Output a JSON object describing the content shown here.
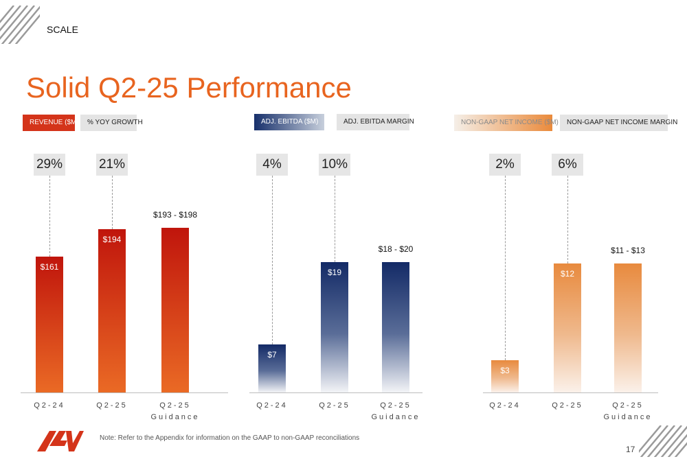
{
  "header": {
    "section": "SCALE",
    "title": "Solid Q2-25 Performance"
  },
  "legends": [
    {
      "label": "REVENUE ($M)"
    },
    {
      "label": "% YOY GROWTH"
    },
    {
      "label": "ADJ. EBITDA ($M)"
    },
    {
      "label": "ADJ. EBITDA MARGIN"
    },
    {
      "label": "NON-GAAP NET INCOME ($M)"
    },
    {
      "label": "NON-GAAP NET INCOME MARGIN"
    }
  ],
  "chart_data": [
    {
      "type": "bar",
      "categories": [
        "Q2-24",
        "Q2-25",
        "Q2-25 Guidance"
      ],
      "series": [
        {
          "name": "REVENUE ($M)",
          "values": [
            161,
            194,
            195.5
          ],
          "labels": [
            "$161",
            "$194",
            "$193 - $198"
          ]
        }
      ],
      "growth": [
        "29%",
        "21%"
      ],
      "xlabels": [
        [
          "Q2-24"
        ],
        [
          "Q2-25"
        ],
        [
          "Q2-25",
          "Guidance"
        ]
      ],
      "ylim": [
        0,
        220
      ],
      "color": "#d4341a"
    },
    {
      "type": "bar",
      "categories": [
        "Q2-24",
        "Q2-25",
        "Q2-25 Guidance"
      ],
      "series": [
        {
          "name": "ADJ. EBITDA ($M)",
          "values": [
            7,
            19,
            19
          ],
          "labels": [
            "$7",
            "$19",
            "$18 - $20"
          ]
        }
      ],
      "growth": [
        "4%",
        "10%"
      ],
      "xlabels": [
        [
          "Q2-24"
        ],
        [
          "Q2-25"
        ],
        [
          "Q2-25",
          "Guidance"
        ]
      ],
      "ylim": [
        0,
        27
      ],
      "color": "#17306b"
    },
    {
      "type": "bar",
      "categories": [
        "Q2-24",
        "Q2-25",
        "Q2-25 Guidance"
      ],
      "series": [
        {
          "name": "NON-GAAP NET INCOME ($M)",
          "values": [
            3,
            12,
            12
          ],
          "labels": [
            "$3",
            "$12",
            "$11 - $13"
          ]
        }
      ],
      "growth": [
        "2%",
        "6%"
      ],
      "xlabels": [
        [
          "Q2-24"
        ],
        [
          "Q2-25"
        ],
        [
          "Q2-25",
          "Guidance"
        ]
      ],
      "ylim": [
        0,
        17.2
      ],
      "color": "#e88a3e"
    }
  ],
  "footer": {
    "note": "Note: Refer to the Appendix for information on the GAAP to non-GAAP reconciliations",
    "page": "17",
    "logo_text": "ACV"
  }
}
